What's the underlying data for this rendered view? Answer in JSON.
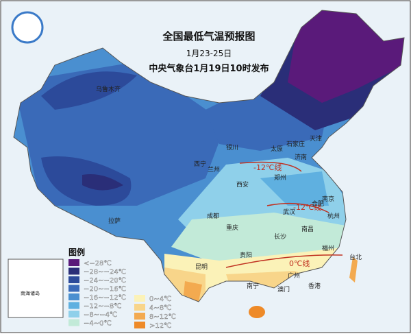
{
  "header": {
    "title": "全国最低气温预报图",
    "period": "1月23-25日",
    "issuer": "中央气象台1月19日10时发布"
  },
  "legend": {
    "title": "图例",
    "items": [
      {
        "label": "<−28℃",
        "color": "#5a1a7a"
      },
      {
        "label": "−28~−24℃",
        "color": "#2a2e78"
      },
      {
        "label": "−24~−20℃",
        "color": "#2c4a9a"
      },
      {
        "label": "−20~−16℃",
        "color": "#3a6ab8"
      },
      {
        "label": "−16~−12℃",
        "color": "#4a8fd0"
      },
      {
        "label": "−12~−8℃",
        "color": "#5fb0e0"
      },
      {
        "label": "−8~−4℃",
        "color": "#8fd0ea"
      },
      {
        "label": "−4~0℃",
        "color": "#c2ead8"
      },
      {
        "label": "0~4℃",
        "color": "#fbf2b8"
      },
      {
        "label": "4~8℃",
        "color": "#f8d58a"
      },
      {
        "label": "8~12℃",
        "color": "#f3aa50"
      },
      {
        "label": ">12℃",
        "color": "#ee8a28"
      }
    ]
  },
  "isolines": [
    "-12℃线",
    "-12℃线",
    "0℃线"
  ],
  "cities": [
    "乌鲁木齐",
    "银川",
    "太原",
    "石家庄",
    "天津",
    "济南",
    "西宁",
    "兰州",
    "西安",
    "郑州",
    "拉萨",
    "成都",
    "重庆",
    "武汉",
    "合肥",
    "南京",
    "杭州",
    "长沙",
    "南昌",
    "贵阳",
    "昆明",
    "福州",
    "台北",
    "南宁",
    "广州",
    "香港",
    "澳门"
  ],
  "inset": "南海诸岛"
}
